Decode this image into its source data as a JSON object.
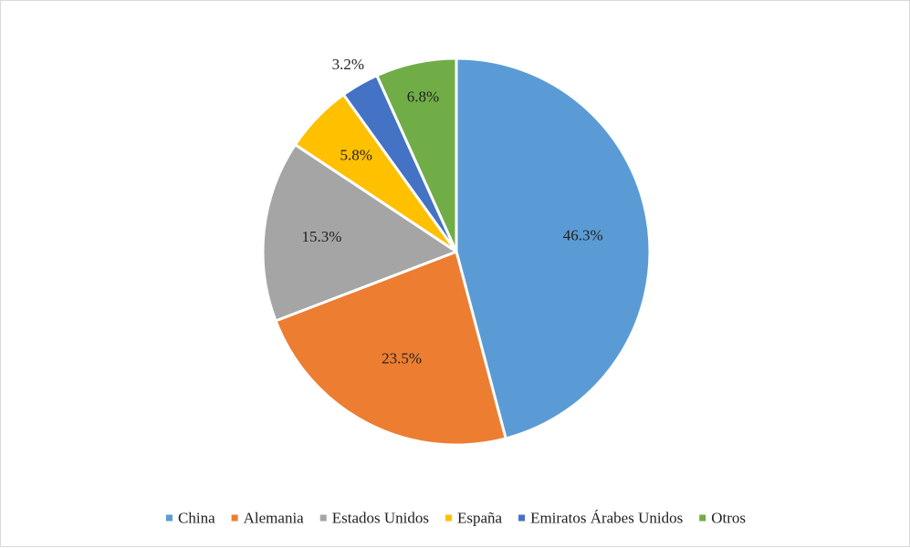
{
  "chart_data": {
    "type": "pie",
    "title": "",
    "categories": [
      "China",
      "Alemania",
      "Estados Unidos",
      "España",
      "Emiratos Árabes Unidos",
      "Otros"
    ],
    "values": [
      46.3,
      23.5,
      15.3,
      5.8,
      3.2,
      6.8
    ],
    "data_labels": [
      "46.3%",
      "23.5%",
      "15.3%",
      "5.8%",
      "3.2%",
      "6.8%"
    ],
    "colors": [
      "#5B9BD5",
      "#ED7D31",
      "#A5A5A5",
      "#FFC000",
      "#4472C4",
      "#70AD47"
    ],
    "legend_position": "bottom",
    "start_angle": "12 o'clock",
    "direction": "clockwise"
  }
}
